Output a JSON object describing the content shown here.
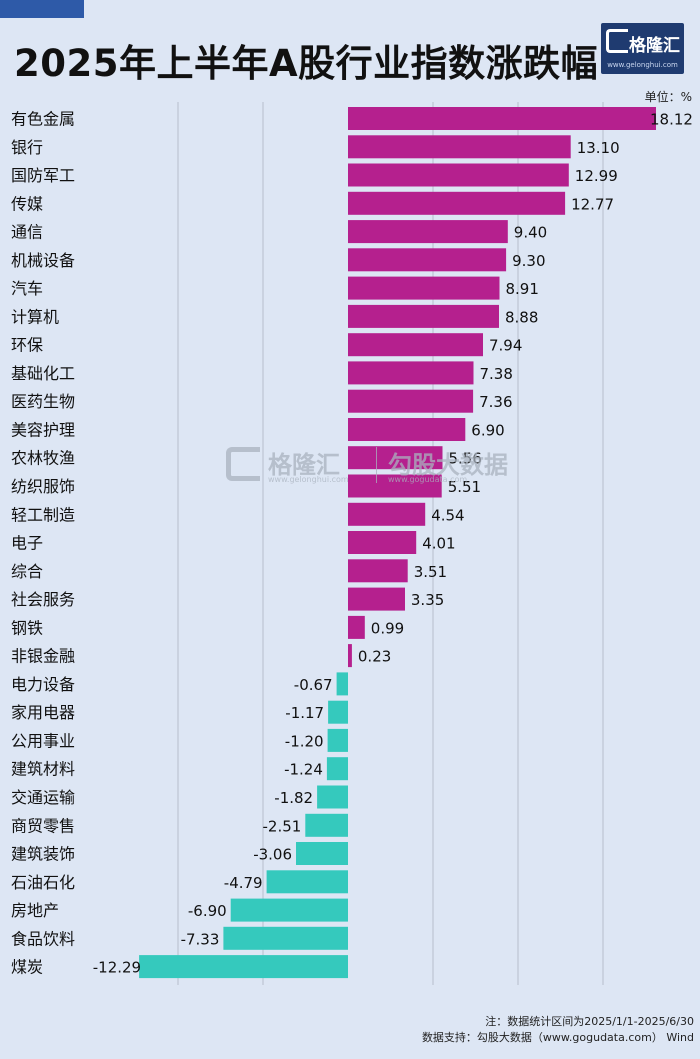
{
  "title": "2025年上半年A股行业指数涨跌幅",
  "logo": {
    "brand": "格隆汇",
    "url": "www.gelonghui.com"
  },
  "watermark": {
    "brand": "格隆汇",
    "url": "www.gelonghui.com",
    "brand2": "勾股大数据",
    "url2": "www.gogudata.com"
  },
  "unit_label": "单位：%",
  "footnotes": {
    "note": "注：数据统计区间为2025/1/1-2025/6/30",
    "source": "数据支持：勾股大数据（www.gogudata.com）  Wind"
  },
  "colors": {
    "positive": "#b5208e",
    "negative": "#35c9bd",
    "background": "#dde6f4",
    "gridline": "#b6bfcc"
  },
  "chart_data": {
    "type": "bar",
    "orientation": "horizontal",
    "title": "2025年上半年A股行业指数涨跌幅",
    "unit": "%",
    "grid": true,
    "categories": [
      "有色金属",
      "银行",
      "国防军工",
      "传媒",
      "通信",
      "机械设备",
      "汽车",
      "计算机",
      "环保",
      "基础化工",
      "医药生物",
      "美容护理",
      "农林牧渔",
      "纺织服饰",
      "轻工制造",
      "电子",
      "综合",
      "社会服务",
      "钢铁",
      "非银金融",
      "电力设备",
      "家用电器",
      "公用事业",
      "建筑材料",
      "交通运输",
      "商贸零售",
      "建筑装饰",
      "石油石化",
      "房地产",
      "食品饮料",
      "煤炭"
    ],
    "values": [
      18.12,
      13.1,
      12.99,
      12.77,
      9.4,
      9.3,
      8.91,
      8.88,
      7.94,
      7.38,
      7.36,
      6.9,
      5.56,
      5.51,
      4.54,
      4.01,
      3.51,
      3.35,
      0.99,
      0.23,
      -0.67,
      -1.17,
      -1.2,
      -1.24,
      -1.82,
      -2.51,
      -3.06,
      -4.79,
      -6.9,
      -7.33,
      -12.29
    ],
    "value_labels": [
      "18.12",
      "13.10",
      "12.99",
      "12.77",
      "9.40",
      "9.30",
      "8.91",
      "8.88",
      "7.94",
      "7.38",
      "7.36",
      "6.90",
      "5.56",
      "5.51",
      "4.54",
      "4.01",
      "3.51",
      "3.35",
      "0.99",
      "0.23",
      "-0.67",
      "-1.17",
      "-1.20",
      "-1.24",
      "-1.82",
      "-2.51",
      "-3.06",
      "-4.79",
      "-6.90",
      "-7.33",
      "-12.29"
    ],
    "xlim": [
      -15,
      20
    ]
  }
}
